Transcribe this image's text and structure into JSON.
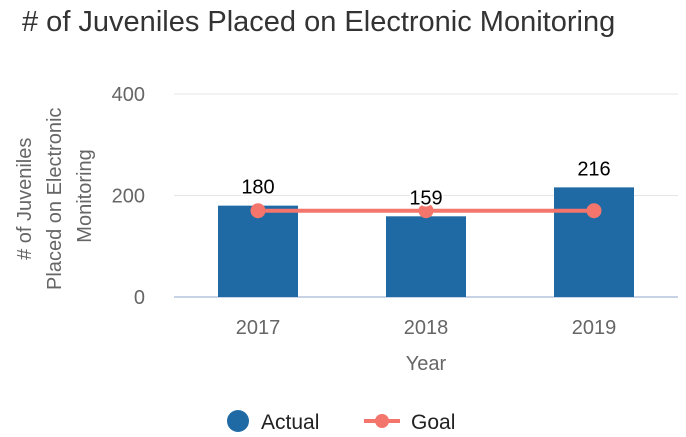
{
  "chart_data": {
    "type": "bar",
    "title": "# of Juveniles Placed on Electronic Monitoring",
    "xlabel": "Year",
    "ylabel_lines": [
      "# of Juveniles",
      "Placed on Electronic",
      "Monitoring"
    ],
    "categories": [
      "2017",
      "2018",
      "2019"
    ],
    "ylim": [
      0,
      400
    ],
    "yticks": [
      "0",
      "200",
      "400"
    ],
    "grid": true,
    "legend_position": "bottom",
    "series": [
      {
        "name": "Actual",
        "type": "bar",
        "values": [
          180,
          159,
          216
        ],
        "color": "#1f6aa5"
      },
      {
        "name": "Goal",
        "type": "line",
        "values": [
          170,
          170,
          170
        ],
        "color": "#f4756b"
      }
    ]
  }
}
